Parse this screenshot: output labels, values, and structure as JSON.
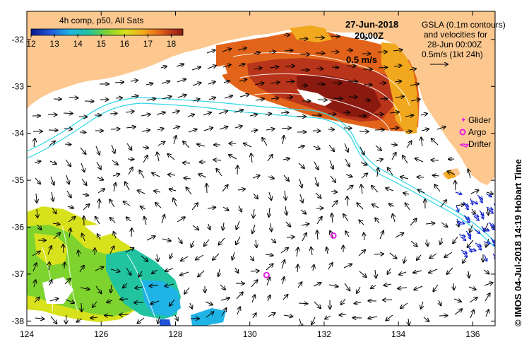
{
  "title": {
    "date": "27-Jun-2018",
    "time": "20:00Z"
  },
  "colorbar": {
    "caption": "4h comp, p50, All Sats",
    "ticks": [
      "12",
      "13",
      "14",
      "15",
      "16",
      "17",
      "18"
    ],
    "min": 12,
    "max": 18.5,
    "colors": [
      "#0b1a8c",
      "#1f52d8",
      "#1fb3e6",
      "#22c4a0",
      "#7ed32f",
      "#d8e21c",
      "#f2a81e",
      "#e2631a",
      "#b8341a",
      "#8a1a10"
    ]
  },
  "info": {
    "line1": "GSLA (0.1m contours)",
    "line2": "and velocities for",
    "line3": "28-Jun 00:00Z",
    "line4": "0.5m/s (1kt 24h)"
  },
  "scale_label": "0.5 m/s",
  "legend": {
    "glider": "Glider",
    "argo": "Argo",
    "drifter": "Drifter"
  },
  "axes": {
    "x_ticks": [
      "124",
      "126",
      "128",
      "130",
      "132",
      "134",
      "136"
    ],
    "y_ticks": [
      "-32",
      "-33",
      "-34",
      "-35",
      "-36",
      "-37",
      "-38"
    ],
    "lon_range": [
      124,
      136.6
    ],
    "lat_range": [
      -38.1,
      -31.4
    ]
  },
  "credit": "©  IMOS 04-Jul-2018 14:19 Hobart Time",
  "argo_floats": [
    {
      "lon": 132.25,
      "lat": -36.18
    },
    {
      "lon": 130.45,
      "lat": -37.02
    }
  ],
  "colors": {
    "land": "#fcc890",
    "ocean": "#ffffff",
    "bathymetry": "#2fd7e6",
    "argo": "#e61ee6",
    "drifter_arrows": "#1020d0",
    "arrows": "#000000",
    "contours": "#ffffff"
  }
}
